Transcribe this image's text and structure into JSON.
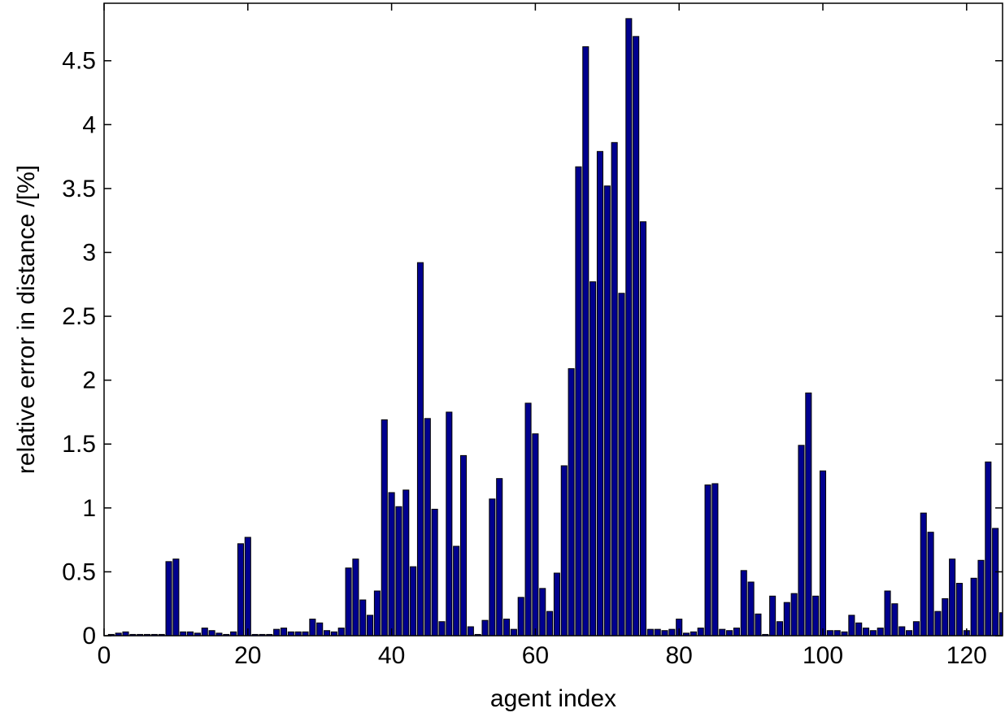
{
  "chart_data": {
    "type": "bar",
    "title": "",
    "xlabel": "agent index",
    "ylabel": "relative error in distance /[%]",
    "xlim": [
      0,
      125
    ],
    "ylim": [
      0,
      4.95
    ],
    "xticks": [
      0,
      20,
      40,
      60,
      80,
      100,
      120
    ],
    "yticks": [
      0,
      0.5,
      1,
      1.5,
      2,
      2.5,
      3,
      3.5,
      4,
      4.5
    ],
    "ytick_labels": [
      "0",
      "0.5",
      "1",
      "1.5",
      "2",
      "2.5",
      "3",
      "3.5",
      "4",
      "4.5"
    ],
    "grid": false,
    "bar_color": "#00008f",
    "x": [
      1,
      2,
      3,
      4,
      5,
      6,
      7,
      8,
      9,
      10,
      11,
      12,
      13,
      14,
      15,
      16,
      17,
      18,
      19,
      20,
      21,
      22,
      23,
      24,
      25,
      26,
      27,
      28,
      29,
      30,
      31,
      32,
      33,
      34,
      35,
      36,
      37,
      38,
      39,
      40,
      41,
      42,
      43,
      44,
      45,
      46,
      47,
      48,
      49,
      50,
      51,
      52,
      53,
      54,
      55,
      56,
      57,
      58,
      59,
      60,
      61,
      62,
      63,
      64,
      65,
      66,
      67,
      68,
      69,
      70,
      71,
      72,
      73,
      74,
      75,
      76,
      77,
      78,
      79,
      80,
      81,
      82,
      83,
      84,
      85,
      86,
      87,
      88,
      89,
      90,
      91,
      92,
      93,
      94,
      95,
      96,
      97,
      98,
      99,
      100,
      101,
      102,
      103,
      104,
      105,
      106,
      107,
      108,
      109,
      110,
      111,
      112,
      113,
      114,
      115,
      116,
      117,
      118,
      119,
      120,
      121,
      122,
      123,
      124,
      125
    ],
    "values": [
      0.01,
      0.02,
      0.03,
      0.01,
      0.01,
      0.01,
      0.01,
      0.01,
      0.58,
      0.6,
      0.03,
      0.03,
      0.02,
      0.06,
      0.04,
      0.02,
      0.01,
      0.03,
      0.72,
      0.77,
      0.01,
      0.01,
      0.01,
      0.05,
      0.06,
      0.03,
      0.03,
      0.03,
      0.13,
      0.1,
      0.04,
      0.03,
      0.06,
      0.53,
      0.6,
      0.28,
      0.16,
      0.35,
      1.69,
      1.12,
      1.01,
      1.14,
      0.54,
      2.92,
      1.7,
      0.99,
      0.11,
      1.75,
      0.7,
      1.41,
      0.07,
      0.01,
      0.12,
      1.07,
      1.23,
      0.13,
      0.05,
      0.3,
      1.82,
      1.58,
      0.37,
      0.19,
      0.49,
      1.33,
      2.09,
      3.67,
      4.61,
      2.77,
      3.79,
      3.52,
      3.86,
      2.68,
      4.83,
      4.69,
      3.24,
      0.05,
      0.05,
      0.04,
      0.05,
      0.13,
      0.02,
      0.03,
      0.06,
      1.18,
      1.19,
      0.05,
      0.04,
      0.06,
      0.51,
      0.42,
      0.17,
      0.01,
      0.31,
      0.11,
      0.26,
      0.33,
      1.49,
      1.9,
      0.31,
      1.29,
      0.04,
      0.04,
      0.03,
      0.16,
      0.1,
      0.06,
      0.04,
      0.06,
      0.35,
      0.25,
      0.07,
      0.04,
      0.11,
      0.96,
      0.81,
      0.19,
      0.29,
      0.6,
      0.41,
      0.04,
      0.45,
      0.59,
      1.36,
      0.84,
      0.18
    ]
  }
}
